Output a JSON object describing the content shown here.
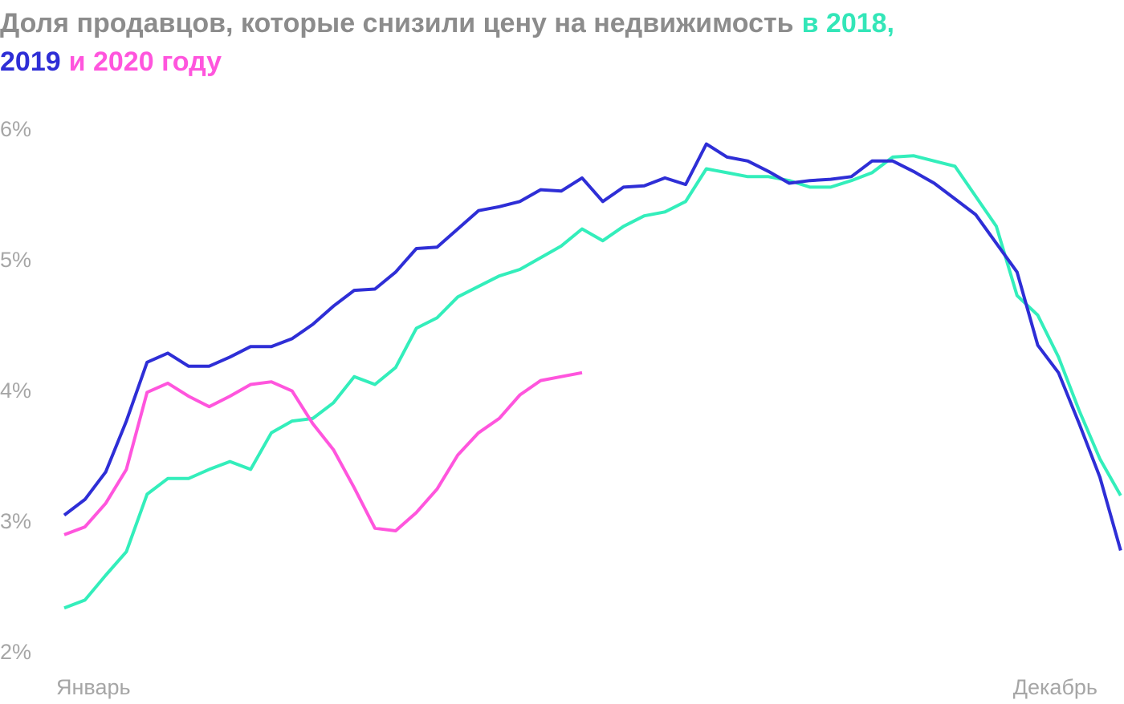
{
  "chart_data": {
    "type": "line",
    "title_lines": [
      [
        {
          "text": "Доля продавцов, которые снизили цену на недвижимость",
          "color": "#8c8c8c"
        },
        {
          "text": "в 2018,",
          "color": "#33e6b8"
        }
      ],
      [
        {
          "text": "2019",
          "color": "#2e2ed6"
        },
        {
          "text": "и 2020 году",
          "color": "#ff55dd"
        }
      ]
    ],
    "categories": [
      "Январь",
      null,
      null,
      null,
      null,
      null,
      null,
      null,
      null,
      null,
      null,
      null,
      null,
      null,
      null,
      null,
      null,
      null,
      null,
      null,
      null,
      null,
      null,
      null,
      null,
      null,
      null,
      null,
      null,
      null,
      null,
      null,
      null,
      null,
      null,
      null,
      null,
      null,
      null,
      null,
      null,
      null,
      null,
      null,
      null,
      null,
      null,
      null,
      null,
      null,
      null,
      "Декабрь"
    ],
    "series": [
      {
        "color": "#33eebb",
        "values": [
          2.33,
          2.39,
          2.58,
          2.76,
          3.2,
          3.32,
          3.32,
          3.39,
          3.45,
          3.39,
          3.67,
          3.76,
          3.78,
          3.9,
          4.1,
          4.04,
          4.17,
          4.47,
          4.55,
          4.71,
          4.79,
          4.87,
          4.92,
          5.01,
          5.1,
          5.23,
          5.14,
          5.25,
          5.33,
          5.36,
          5.44,
          5.69,
          5.66,
          5.63,
          5.63,
          5.6,
          5.55,
          5.55,
          5.6,
          5.66,
          5.78,
          5.79,
          5.75,
          5.71,
          5.48,
          5.25,
          4.72,
          4.57,
          4.25,
          3.84,
          3.47,
          3.19
        ]
      },
      {
        "color": "#2e2ed6",
        "values": [
          3.04,
          3.16,
          3.37,
          3.76,
          4.21,
          4.28,
          4.18,
          4.18,
          4.25,
          4.33,
          4.33,
          4.39,
          4.5,
          4.64,
          4.76,
          4.77,
          4.9,
          5.08,
          5.09,
          5.23,
          5.37,
          5.4,
          5.44,
          5.53,
          5.52,
          5.62,
          5.44,
          5.55,
          5.56,
          5.62,
          5.57,
          5.88,
          5.78,
          5.75,
          5.67,
          5.58,
          5.6,
          5.61,
          5.63,
          5.75,
          5.75,
          5.67,
          5.58,
          5.46,
          5.34,
          5.12,
          4.9,
          4.34,
          4.13,
          3.74,
          3.33,
          2.77
        ]
      },
      {
        "color": "#ff55dd",
        "values": [
          2.89,
          2.95,
          3.13,
          3.39,
          3.98,
          4.05,
          3.95,
          3.87,
          3.95,
          4.04,
          4.06,
          3.99,
          3.74,
          3.54,
          3.25,
          2.94,
          2.92,
          3.06,
          3.24,
          3.5,
          3.67,
          3.78,
          3.96,
          4.07,
          4.1,
          4.13,
          null,
          null,
          null,
          null,
          null,
          null,
          null,
          null,
          null,
          null,
          null,
          null,
          null,
          null,
          null,
          null,
          null,
          null,
          null,
          null,
          null,
          null,
          null,
          null,
          null,
          null
        ]
      }
    ],
    "ylim": [
      2,
      6
    ],
    "yticks": [
      {
        "value": 2,
        "label": "2%"
      },
      {
        "value": 3,
        "label": "3%"
      },
      {
        "value": 4,
        "label": "4%"
      },
      {
        "value": 5,
        "label": "5%"
      },
      {
        "value": 6,
        "label": "6%"
      }
    ]
  }
}
